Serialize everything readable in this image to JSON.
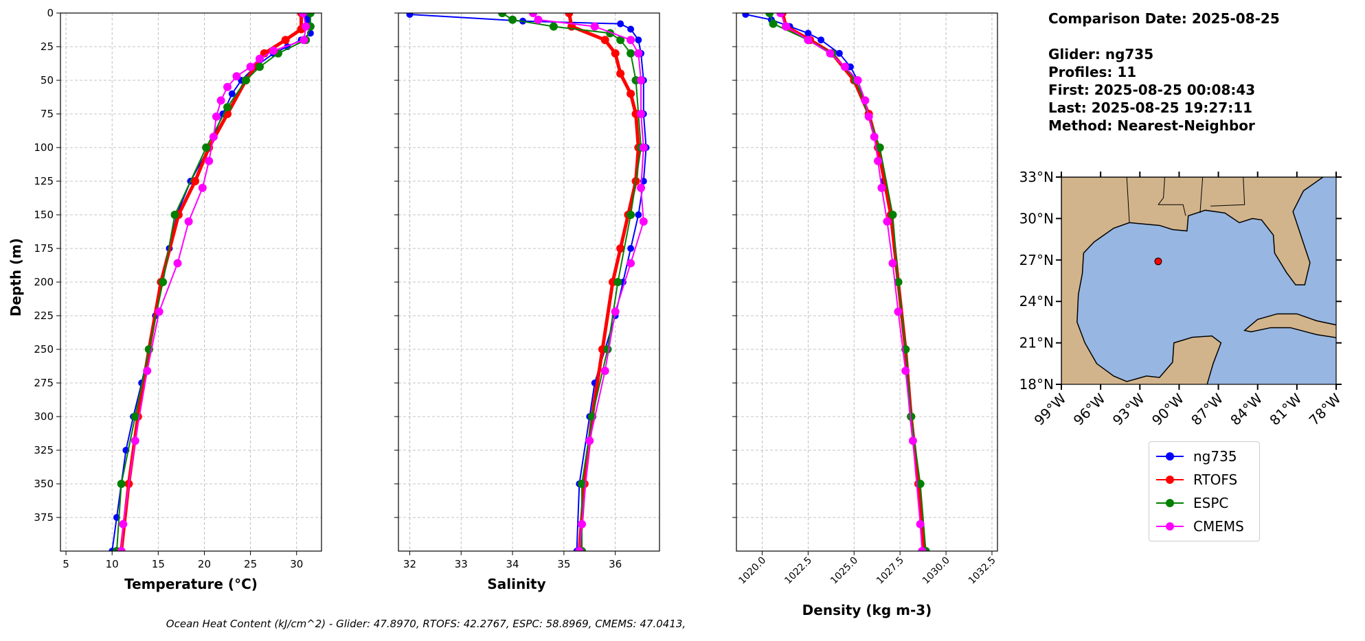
{
  "colors": {
    "ng735": "#0000ff",
    "RTOFS": "#ff0000",
    "ESPC": "#008000",
    "CMEMS": "#ff00ff",
    "land": "#d2b48c",
    "ocean": "#97b6e1"
  },
  "info": {
    "comparison_date": "Comparison Date: 2025-08-25",
    "glider": "Glider: ng735",
    "profiles": "Profiles: 11",
    "first": "First: 2025-08-25 00:08:43",
    "last": "Last: 2025-08-25 19:27:11",
    "method": "Method: Nearest-Neighbor"
  },
  "ohc_text": "Ocean Heat Content (kJ/cm^2) - Glider: 47.8970,  RTOFS: 42.2767,  ESPC: 58.8969,  CMEMS: 47.0413,",
  "legend": [
    {
      "name": "ng735",
      "color": "#0000ff"
    },
    {
      "name": "RTOFS",
      "color": "#ff0000"
    },
    {
      "name": "ESPC",
      "color": "#008000"
    },
    {
      "name": "CMEMS",
      "color": "#ff00ff"
    }
  ],
  "chart_data": [
    {
      "type": "line",
      "id": "temperature",
      "xlabel": "Temperature (°C)",
      "ylabel": "Depth (m)",
      "xlim": [
        4.4,
        32.7
      ],
      "ylim": [
        400,
        0
      ],
      "grid": true,
      "xticks": [
        5,
        10,
        15,
        20,
        25,
        30
      ],
      "yticks": [
        0,
        25,
        50,
        75,
        100,
        125,
        150,
        175,
        200,
        225,
        250,
        275,
        300,
        325,
        350,
        375
      ],
      "series": [
        {
          "name": "ng735",
          "color": "#0000ff",
          "depth": [
            1,
            5,
            10,
            15,
            20,
            25,
            30,
            40,
            50,
            60,
            75,
            100,
            125,
            150,
            175,
            200,
            225,
            250,
            275,
            300,
            325,
            350,
            375,
            400
          ],
          "values": [
            31,
            31.2,
            31.4,
            31.5,
            30.5,
            29,
            27.5,
            25.5,
            24,
            23,
            22,
            20.5,
            18.5,
            17,
            16.2,
            15.5,
            14.7,
            14,
            13.2,
            12.3,
            11.5,
            11,
            10.5,
            10
          ]
        },
        {
          "name": "RTOFS",
          "color": "#ff0000",
          "depth": [
            0,
            12,
            20,
            30,
            50,
            75,
            100,
            125,
            150,
            200,
            250,
            300,
            350,
            400
          ],
          "values": [
            30.5,
            30.5,
            28.8,
            26.5,
            24.5,
            22.5,
            20.5,
            19,
            17.2,
            15.3,
            14,
            12.8,
            11.8,
            11
          ]
        },
        {
          "name": "ESPC",
          "color": "#008000",
          "depth": [
            0,
            10,
            20,
            30,
            40,
            50,
            70,
            100,
            150,
            200,
            250,
            300,
            350,
            400
          ],
          "values": [
            31.5,
            31.5,
            31,
            28,
            26,
            24.5,
            22.5,
            20.2,
            16.8,
            15.5,
            14,
            12.5,
            11,
            10.5
          ]
        },
        {
          "name": "CMEMS",
          "color": "#ff00ff",
          "depth": [
            0,
            10,
            20,
            28,
            34,
            40,
            47,
            55,
            65,
            77,
            92,
            110,
            130,
            155,
            186,
            222,
            266,
            318,
            380,
            400
          ],
          "values": [
            30.7,
            31,
            30.8,
            27.5,
            26,
            25,
            23.5,
            22.5,
            21.8,
            21.3,
            21,
            20.5,
            19.8,
            18.3,
            17.1,
            15.1,
            13.8,
            12.5,
            11.2,
            11
          ]
        }
      ]
    },
    {
      "type": "line",
      "id": "salinity",
      "xlabel": "Salinity",
      "ylabel": "",
      "xlim": [
        31.78,
        36.86
      ],
      "ylim": [
        400,
        0
      ],
      "grid": true,
      "xticks": [
        32,
        33,
        34,
        35,
        36
      ],
      "yticks": [
        0,
        25,
        50,
        75,
        100,
        125,
        150,
        175,
        200,
        225,
        250,
        275,
        300,
        325,
        350,
        375
      ],
      "series": [
        {
          "name": "ng735",
          "color": "#0000ff",
          "depth": [
            1,
            6,
            8,
            12,
            20,
            30,
            50,
            75,
            100,
            125,
            150,
            175,
            200,
            225,
            250,
            275,
            300,
            350,
            400
          ],
          "values": [
            32.0,
            34.2,
            36.1,
            36.3,
            36.45,
            36.5,
            36.55,
            36.55,
            36.6,
            36.55,
            36.45,
            36.3,
            36.15,
            36.0,
            35.8,
            35.6,
            35.5,
            35.3,
            35.25
          ]
        },
        {
          "name": "RTOFS",
          "color": "#ff0000",
          "depth": [
            0,
            10,
            20,
            30,
            45,
            60,
            75,
            100,
            125,
            150,
            175,
            200,
            250,
            300,
            350,
            400
          ],
          "values": [
            35.1,
            35.15,
            35.8,
            36.0,
            36.1,
            36.3,
            36.4,
            36.45,
            36.4,
            36.25,
            36.1,
            35.95,
            35.75,
            35.55,
            35.4,
            35.3
          ]
        },
        {
          "name": "ESPC",
          "color": "#008000",
          "depth": [
            0,
            5,
            10,
            15,
            20,
            30,
            50,
            100,
            150,
            200,
            250,
            300,
            350,
            400
          ],
          "values": [
            33.8,
            34.0,
            34.8,
            35.9,
            36.1,
            36.3,
            36.4,
            36.5,
            36.3,
            36.05,
            35.85,
            35.55,
            35.35,
            35.35
          ]
        },
        {
          "name": "CMEMS",
          "color": "#ff00ff",
          "depth": [
            0,
            5,
            10,
            20,
            30,
            50,
            75,
            100,
            130,
            155,
            186,
            222,
            266,
            318,
            380,
            400
          ],
          "values": [
            34.4,
            34.5,
            35.6,
            36.3,
            36.45,
            36.5,
            36.5,
            36.55,
            36.5,
            36.55,
            36.3,
            36.0,
            35.8,
            35.5,
            35.35,
            35.3
          ]
        }
      ]
    },
    {
      "type": "line",
      "id": "density",
      "xlabel": "Density (kg m-3)",
      "ylabel": "",
      "xlim": [
        1018.6,
        1032.8
      ],
      "ylim": [
        400,
        0
      ],
      "grid": true,
      "xticks": [
        1020.0,
        1022.5,
        1025.0,
        1027.5,
        1030.0,
        1032.5
      ],
      "yticks": [
        0,
        25,
        50,
        75,
        100,
        125,
        150,
        175,
        200,
        225,
        250,
        275,
        300,
        325,
        350,
        375
      ],
      "series": [
        {
          "name": "ng735",
          "color": "#0000ff",
          "depth": [
            1,
            5,
            10,
            15,
            20,
            30,
            40,
            50,
            75,
            100,
            125,
            150,
            200,
            250,
            300,
            350,
            400
          ],
          "values": [
            1019.1,
            1020.5,
            1021.5,
            1022.5,
            1023.2,
            1024.2,
            1024.8,
            1025.2,
            1025.8,
            1026.3,
            1026.6,
            1027.0,
            1027.4,
            1027.8,
            1028.1,
            1028.5,
            1028.9
          ]
        },
        {
          "name": "RTOFS",
          "color": "#ff0000",
          "depth": [
            0,
            10,
            20,
            30,
            50,
            75,
            100,
            150,
            200,
            250,
            300,
            350,
            400
          ],
          "values": [
            1021.1,
            1021.3,
            1022.6,
            1023.8,
            1025.0,
            1025.8,
            1026.3,
            1027.0,
            1027.4,
            1027.8,
            1028.1,
            1028.5,
            1028.8
          ]
        },
        {
          "name": "ESPC",
          "color": "#008000",
          "depth": [
            0,
            8,
            20,
            30,
            50,
            100,
            150,
            200,
            250,
            300,
            350,
            400
          ],
          "values": [
            1020.4,
            1020.6,
            1022.5,
            1023.8,
            1025.1,
            1026.4,
            1027.1,
            1027.4,
            1027.8,
            1028.1,
            1028.6,
            1028.9
          ]
        },
        {
          "name": "CMEMS",
          "color": "#ff00ff",
          "depth": [
            0,
            10,
            20,
            30,
            40,
            50,
            65,
            77,
            92,
            110,
            130,
            155,
            186,
            222,
            266,
            318,
            380,
            400
          ],
          "values": [
            1021.0,
            1021.3,
            1022.5,
            1023.7,
            1024.5,
            1025.2,
            1025.6,
            1025.8,
            1026.1,
            1026.3,
            1026.5,
            1026.8,
            1027.1,
            1027.4,
            1027.8,
            1028.2,
            1028.6,
            1028.7
          ]
        }
      ]
    }
  ],
  "map": {
    "lon_range": [
      -99,
      -78
    ],
    "lat_range": [
      18,
      33
    ],
    "lat_ticks": [
      {
        "v": 33,
        "label": "33°N"
      },
      {
        "v": 30,
        "label": "30°N"
      },
      {
        "v": 27,
        "label": "27°N"
      },
      {
        "v": 24,
        "label": "24°N"
      },
      {
        "v": 21,
        "label": "21°N"
      },
      {
        "v": 18,
        "label": "18°N"
      }
    ],
    "lon_ticks": [
      {
        "v": -99,
        "label": "99°W"
      },
      {
        "v": -96,
        "label": "96°W"
      },
      {
        "v": -93,
        "label": "93°W"
      },
      {
        "v": -90,
        "label": "90°W"
      },
      {
        "v": -87,
        "label": "87°W"
      },
      {
        "v": -84,
        "label": "84°W"
      },
      {
        "v": -81,
        "label": "81°W"
      },
      {
        "v": -78,
        "label": "78°W"
      }
    ],
    "glider_location": {
      "lon": -91.6,
      "lat": 26.9,
      "color": "#ff0000"
    }
  }
}
